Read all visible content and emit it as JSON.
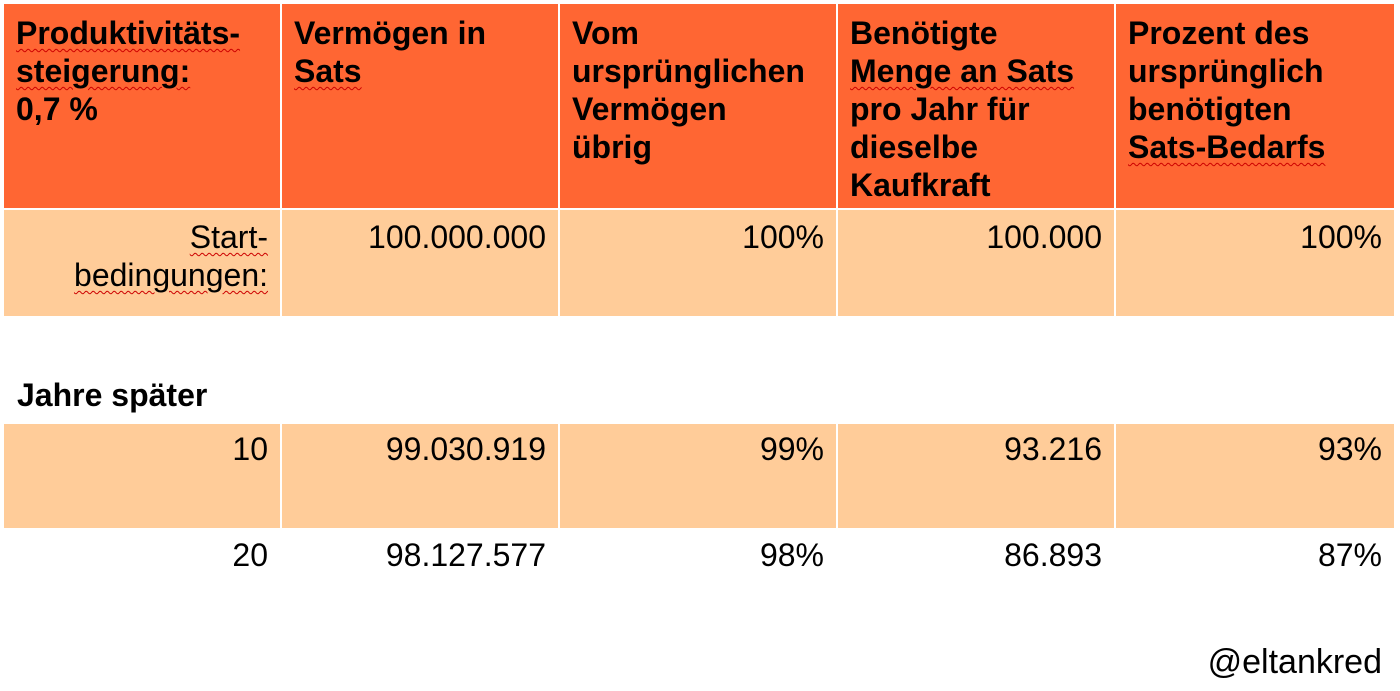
{
  "table": {
    "headers": [
      {
        "lines": [
          "Produktivitäts-",
          "steigerung:",
          "0,7 %"
        ]
      },
      {
        "lines": [
          "Vermögen in",
          "Sats"
        ]
      },
      {
        "lines": [
          "Vom",
          "ursprünglichen",
          "Vermögen",
          "übrig"
        ]
      },
      {
        "lines": [
          "Benötigte",
          "Menge an Sats",
          "pro Jahr für",
          "dieselbe",
          "Kaufkraft"
        ]
      },
      {
        "lines": [
          "Prozent des",
          "ursprünglich",
          "benötigten",
          "Sats-Bedarfs"
        ]
      }
    ],
    "start_row": {
      "label_lines": [
        "Start-",
        "bedingungen:"
      ],
      "values": [
        "100.000.000",
        "100%",
        "100.000",
        "100%"
      ]
    },
    "section_label": "Jahre später",
    "rows": [
      {
        "year": "10",
        "values": [
          "99.030.919",
          "99%",
          "93.216",
          "93%"
        ]
      },
      {
        "year": "20",
        "values": [
          "98.127.577",
          "98%",
          "86.893",
          "87%"
        ]
      }
    ]
  },
  "footer": {
    "handle": "@eltankred"
  },
  "colors": {
    "header_bg": "#ff6633",
    "row_bg": "#ffcc99"
  }
}
